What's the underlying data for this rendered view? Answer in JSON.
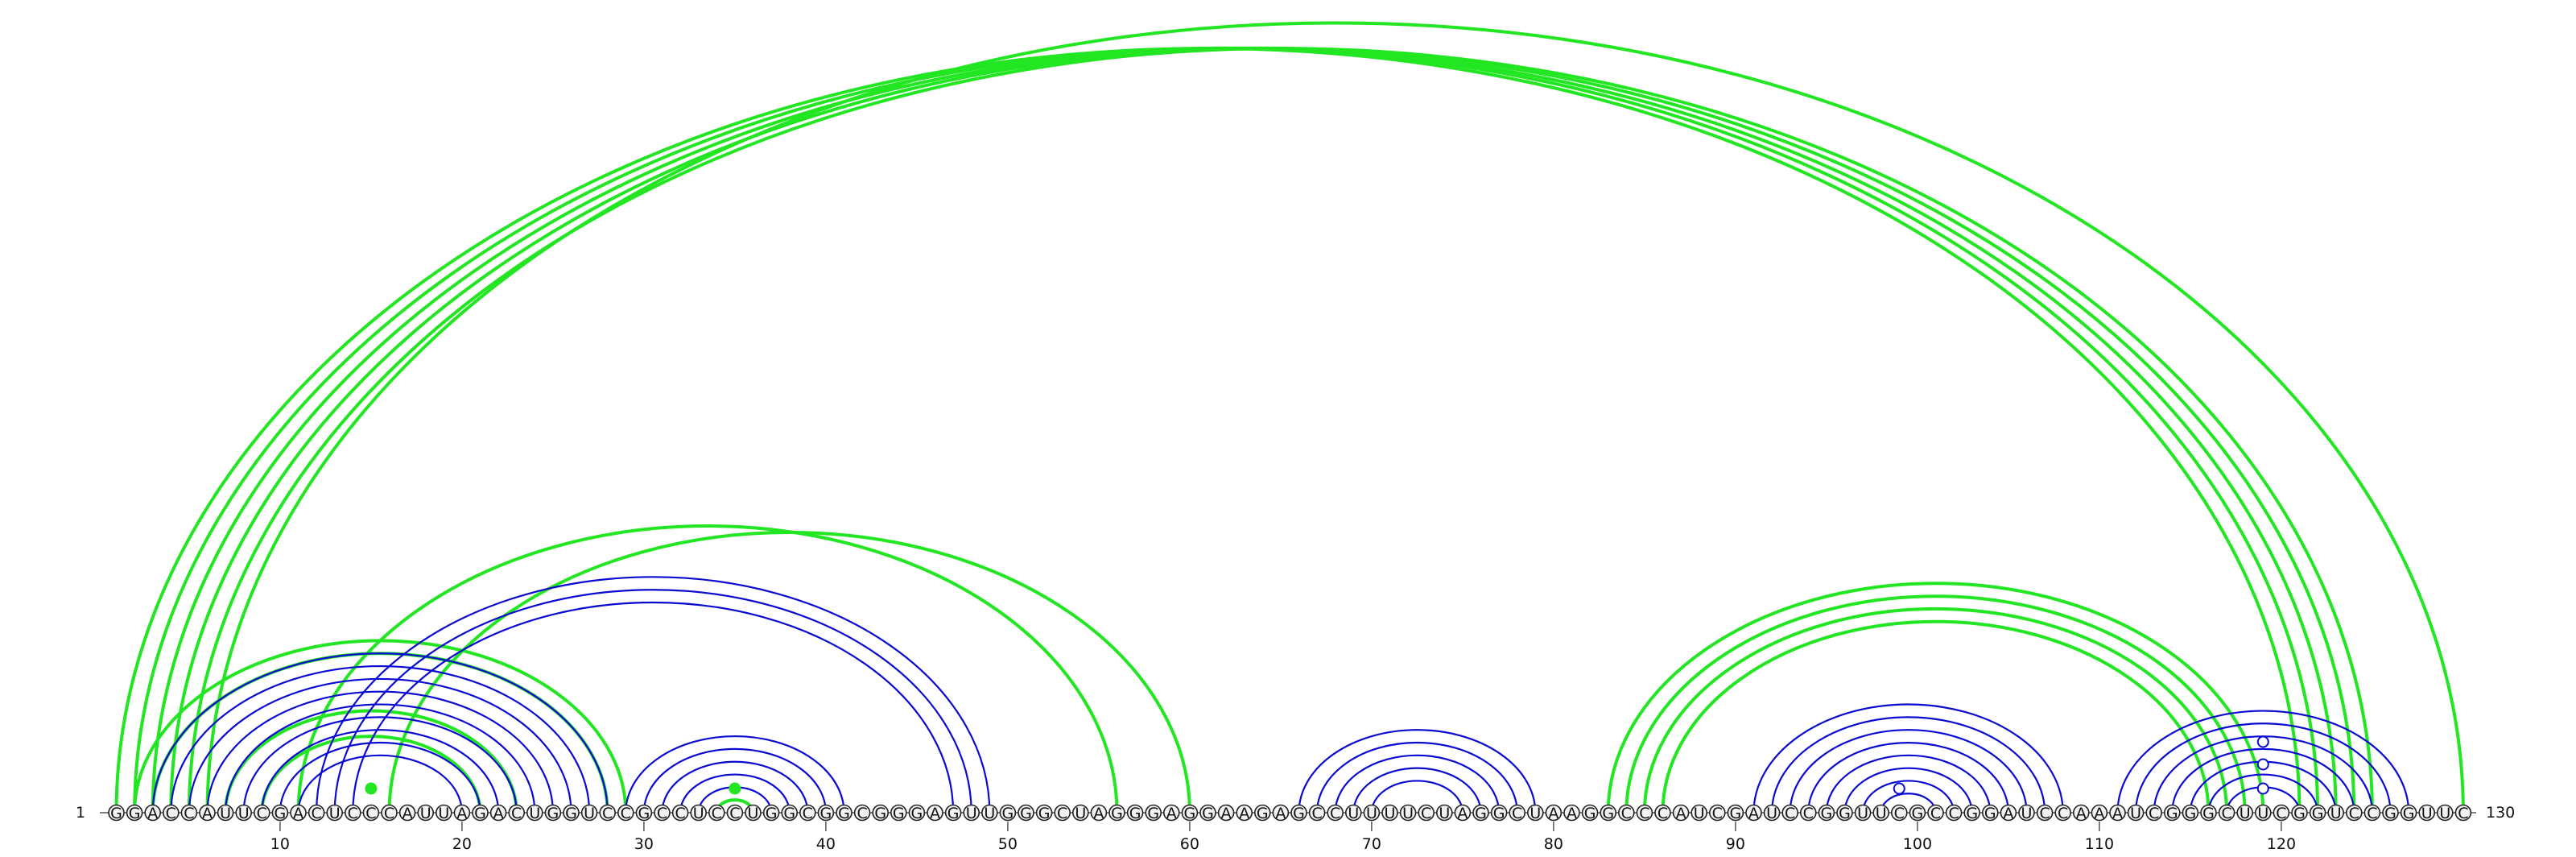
{
  "sequence": "GGACCAUUCGACUCCCAUUAGACUGGUCCGCCUCCUGGCGGCGGGAGUUGGGCUAGGGAGGAAGAGCCUUUUCUAGGCUAAGGCCCAUCGAUCCGGUUCGCCGGAUCCAAAUCGGGCUUCGGUCCGGUUC",
  "start_label": "1",
  "end_label": "130",
  "ticks": [
    10,
    20,
    30,
    40,
    50,
    60,
    70,
    80,
    90,
    100,
    110,
    120
  ],
  "colors": {
    "helix_blue": "#0a0ad2",
    "pseudoknot_green": "#22e622",
    "circle_fill": "#f2f2f2",
    "circle_stroke": "#222222"
  },
  "helices_blue": [
    {
      "i": 3,
      "j": 28
    },
    {
      "i": 4,
      "j": 27
    },
    {
      "i": 5,
      "j": 26
    },
    {
      "i": 6,
      "j": 25
    },
    {
      "i": 7,
      "j": 24
    },
    {
      "i": 8,
      "j": 23
    },
    {
      "i": 9,
      "j": 22
    },
    {
      "i": 10,
      "j": 21
    },
    {
      "i": 11,
      "j": 20
    },
    {
      "i": 12,
      "j": 49
    },
    {
      "i": 13,
      "j": 48
    },
    {
      "i": 14,
      "j": 47
    },
    {
      "i": 29,
      "j": 41
    },
    {
      "i": 30,
      "j": 40
    },
    {
      "i": 31,
      "j": 39
    },
    {
      "i": 32,
      "j": 38
    },
    {
      "i": 33,
      "j": 37
    },
    {
      "i": 66,
      "j": 79
    },
    {
      "i": 67,
      "j": 78
    },
    {
      "i": 68,
      "j": 77
    },
    {
      "i": 69,
      "j": 76
    },
    {
      "i": 70,
      "j": 75
    },
    {
      "i": 91,
      "j": 108
    },
    {
      "i": 92,
      "j": 107
    },
    {
      "i": 93,
      "j": 106
    },
    {
      "i": 94,
      "j": 105
    },
    {
      "i": 95,
      "j": 104
    },
    {
      "i": 96,
      "j": 103
    },
    {
      "i": 97,
      "j": 102
    },
    {
      "i": 98,
      "j": 101
    },
    {
      "i": 111,
      "j": 127
    },
    {
      "i": 112,
      "j": 126
    },
    {
      "i": 113,
      "j": 125
    },
    {
      "i": 114,
      "j": 124
    },
    {
      "i": 115,
      "j": 123
    },
    {
      "i": 116,
      "j": 122
    },
    {
      "i": 117,
      "j": 121
    }
  ],
  "pseudoknots_green": [
    {
      "i": 1,
      "j": 121
    },
    {
      "i": 2,
      "j": 122
    },
    {
      "i": 3,
      "j": 123
    },
    {
      "i": 4,
      "j": 124
    },
    {
      "i": 5,
      "j": 125
    },
    {
      "i": 6,
      "j": 130
    },
    {
      "i": 2,
      "j": 29
    },
    {
      "i": 3,
      "j": 28
    },
    {
      "i": 7,
      "j": 23
    },
    {
      "i": 9,
      "j": 21
    },
    {
      "i": 11,
      "j": 56
    },
    {
      "i": 16,
      "j": 60
    },
    {
      "i": 34,
      "j": 36
    },
    {
      "i": 83,
      "j": 119
    },
    {
      "i": 84,
      "j": 118
    },
    {
      "i": 85,
      "j": 117
    },
    {
      "i": 86,
      "j": 116
    }
  ],
  "markers": [
    {
      "pos": 35,
      "fill": "#22e622",
      "stroke": "#22e622"
    },
    {
      "pos": 15,
      "fill": "#22e622",
      "stroke": "#22e622"
    },
    {
      "pos": 99,
      "fill": "#ffffff",
      "stroke": "#0a0ad2"
    },
    {
      "pos": 119,
      "fill": "#ffffff",
      "stroke": "#0a0ad2"
    }
  ]
}
